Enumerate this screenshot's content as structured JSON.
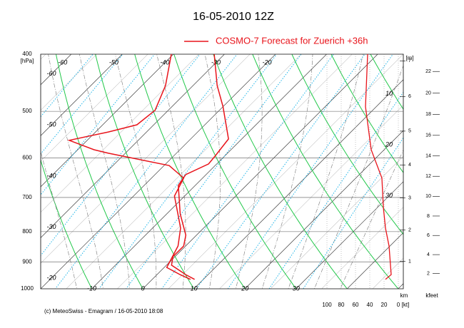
{
  "chart_data": {
    "type": "emagram",
    "title": "16-05-2010  12Z",
    "legend": {
      "label": "COSMO-7 Forecast for Zuerich   +36h",
      "color": "#e8141b"
    },
    "temperature": {
      "p": [
        400,
        452,
        491,
        557,
        594,
        614,
        640,
        668,
        746,
        811,
        846,
        882,
        912,
        946,
        964
      ],
      "t": [
        -32.0,
        -25.3,
        -20.0,
        -12.6,
        -11.9,
        -11.6,
        -14.0,
        -13.3,
        -7.4,
        -2.1,
        -0.4,
        -0.4,
        1.0,
        5.6,
        8.3
      ]
    },
    "dewpoint": {
      "p": [
        400,
        452,
        498,
        527,
        542,
        560,
        581,
        589,
        618,
        649,
        696,
        789,
        846,
        920,
        946,
        964
      ],
      "t": [
        -40.4,
        -35.4,
        -32.6,
        -33.3,
        -37.5,
        -43.5,
        -36.8,
        -33.3,
        -19.0,
        -13.7,
        -12.0,
        -4.5,
        -1.5,
        0.5,
        4.5,
        7.5
      ]
    },
    "wind": {
      "p": [
        400,
        491,
        581,
        649,
        727,
        789,
        846,
        946,
        964
      ],
      "speed": [
        43,
        46,
        38,
        23,
        21,
        18,
        13,
        10,
        18
      ],
      "xlim": [
        100,
        0
      ],
      "xticks": [
        100,
        80,
        60,
        40,
        20,
        0
      ],
      "unit": "[kt]"
    },
    "ylim": [
      400,
      1000
    ],
    "yticks": [
      400,
      500,
      600,
      700,
      800,
      900,
      1000
    ],
    "y_unit": "[hPa]",
    "log_y": true,
    "xlim": [
      -20,
      51
    ],
    "xticks": [
      -10,
      0,
      10,
      20,
      30
    ],
    "left_isotherm_labels": [
      -20,
      -30,
      -40,
      -50,
      -60
    ],
    "top_isotherm_labels": [
      -60,
      -50,
      -40,
      -30,
      -20
    ],
    "right_isotherm_labels": [
      10,
      20,
      30
    ],
    "height_km": {
      "unit": "[m]",
      "label": "km",
      "ticks": [
        1,
        2,
        3,
        4,
        5,
        6,
        7
      ]
    },
    "height_kfeet": {
      "label": "kfeet",
      "ticks": [
        2,
        4,
        6,
        8,
        10,
        12,
        14,
        16,
        18,
        20,
        22
      ]
    },
    "footer": "(c) MeteoSwiss - Emagram  /  16-05-2010  18:08"
  }
}
